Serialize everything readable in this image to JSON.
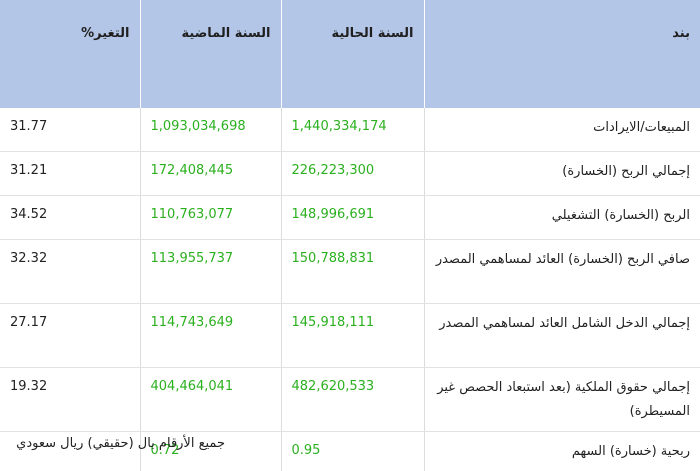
{
  "table": {
    "headers": {
      "item": "بند",
      "current_year": "السنة الحالية",
      "previous_year": "السنة الماضية",
      "change": "التغير%"
    },
    "rows": [
      {
        "item": "المبيعات/الايرادات",
        "current": "1,440,334,174",
        "previous": "1,093,034,698",
        "change": "31.77"
      },
      {
        "item": "إجمالي الربح (الخسارة)",
        "current": "226,223,300",
        "previous": "172,408,445",
        "change": "31.21"
      },
      {
        "item": "الربح (الخسارة) التشغيلي",
        "current": "148,996,691",
        "previous": "110,763,077",
        "change": "34.52"
      },
      {
        "item": "صافي الربح (الخسارة) العائد لمساهمي المصدر",
        "current": "150,788,831",
        "previous": "113,955,737",
        "change": "32.32"
      },
      {
        "item": "إجمالي الدخل الشامل العائد لمساهمي المصدر",
        "current": "145,918,111",
        "previous": "114,743,649",
        "change": "27.17"
      },
      {
        "item": "إجمالي حقوق الملكية (بعد استبعاد الحصص غير المسيطرة)",
        "current": "482,620,533",
        "previous": "404,464,041",
        "change": "19.32"
      },
      {
        "item": "ربحية (خسارة) السهم",
        "current": "0.95",
        "previous": "0.72",
        "change": ""
      }
    ]
  },
  "footnote": "جميع الأرقام بال (حقيقي) ريال سعودي",
  "colors": {
    "header_bg": "#b4c6e7",
    "value_green": "#2bb01f"
  }
}
